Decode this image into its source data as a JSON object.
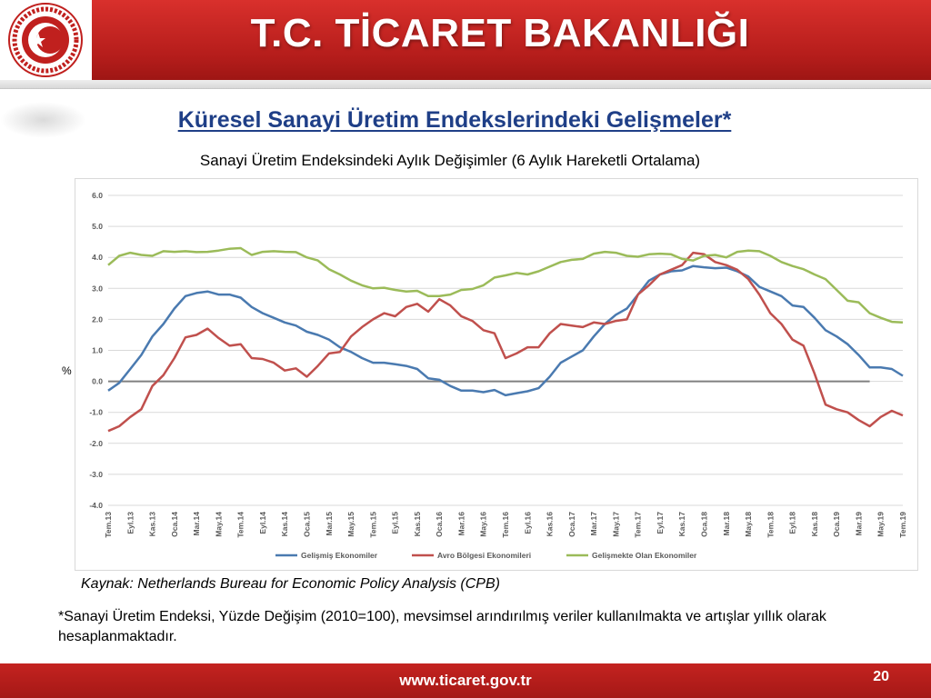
{
  "header": {
    "title": "T.C. TİCARET BAKANLIĞI"
  },
  "slide": {
    "subtitle": "Küresel Sanayi Üretim Endekslerindeki Gelişmeler*",
    "chart_title": "Sanayi Üretim Endeksindeki Aylık Değişimler (6 Aylık Hareketli Ortalama)",
    "source": "Kaynak: Netherlands Bureau for Economic Policy Analysis (CPB)",
    "footnote": "*Sanayi Üretim Endeksi, Yüzde Değişim (2010=100), mevsimsel arındırılmış veriler kullanılmakta ve artışlar yıllık olarak hesaplanmaktadır."
  },
  "footer": {
    "url": "www.ticaret.gov.tr",
    "page": "20"
  },
  "colors": {
    "header": "#c0201e",
    "subtitle": "#1f3f87"
  },
  "chart_data": {
    "type": "line",
    "title": "",
    "ylabel": "%",
    "ylim": [
      -4.0,
      6.0
    ],
    "yticks": [
      "6.0",
      "5.0",
      "4.0",
      "3.0",
      "2.0",
      "1.0",
      "0.0",
      "-1.0",
      "-2.0",
      "-3.0",
      "-4.0"
    ],
    "x": [
      "Tem.13",
      "Ağu.13",
      "Eyl.13",
      "Eki.13",
      "Kas.13",
      "Ara.13",
      "Oca.14",
      "Şub.14",
      "Mar.14",
      "Nis.14",
      "May.14",
      "Haz.14",
      "Tem.14",
      "Ağu.14",
      "Eyl.14",
      "Eki.14",
      "Kas.14",
      "Ara.14",
      "Oca.15",
      "Şub.15",
      "Mar.15",
      "Nis.15",
      "May.15",
      "Haz.15",
      "Tem.15",
      "Ağu.15",
      "Eyl.15",
      "Eki.15",
      "Kas.15",
      "Ara.15",
      "Oca.16",
      "Şub.16",
      "Mar.16",
      "Nis.16",
      "May.16",
      "Haz.16",
      "Tem.16",
      "Ağu.16",
      "Eyl.16",
      "Eki.16",
      "Kas.16",
      "Ara.16",
      "Oca.17",
      "Şub.17",
      "Mar.17",
      "Nis.17",
      "May.17",
      "Haz.17",
      "Tem.17",
      "Ağu.17",
      "Eyl.17",
      "Eki.17",
      "Kas.17",
      "Ara.17",
      "Oca.18",
      "Şub.18",
      "Mar.18",
      "Nis.18",
      "May.18",
      "Haz.18",
      "Tem.18",
      "Ağu.18",
      "Eyl.18",
      "Eki.18",
      "Kas.18",
      "Ara.18",
      "Oca.19",
      "Şub.19",
      "Mar.19",
      "Nis.19",
      "May.19",
      "Haz.19",
      "Tem.19"
    ],
    "xtick_labels": [
      "Tem.13",
      "Eyl.13",
      "Kas.13",
      "Oca.14",
      "Mar.14",
      "May.14",
      "Tem.14",
      "Eyl.14",
      "Kas.14",
      "Oca.15",
      "Mar.15",
      "May.15",
      "Tem.15",
      "Eyl.15",
      "Kas.15",
      "Oca.16",
      "Mar.16",
      "May.16",
      "Tem.16",
      "Eyl.16",
      "Kas.16",
      "Oca.17",
      "Mar.17",
      "May.17",
      "Tem.17",
      "Eyl.17",
      "Kas.17",
      "Oca.18",
      "Mar.18",
      "May.18",
      "Tem.18",
      "Eyl.18",
      "Kas.18",
      "Oca.19",
      "Mar.19",
      "May.19",
      "Tem.19"
    ],
    "legend_position": "bottom",
    "grid": true,
    "zero_line_end_index": 69,
    "series": [
      {
        "name": "Gelişmiş Ekonomiler",
        "color": "#4a7ab0",
        "values": [
          -0.3,
          -0.05,
          0.4,
          0.85,
          1.45,
          1.85,
          2.35,
          2.75,
          2.85,
          2.9,
          2.8,
          2.8,
          2.7,
          2.4,
          2.2,
          2.05,
          1.9,
          1.8,
          1.6,
          1.5,
          1.35,
          1.1,
          0.95,
          0.75,
          0.6,
          0.6,
          0.55,
          0.5,
          0.4,
          0.1,
          0.05,
          -0.15,
          -0.3,
          -0.3,
          -0.35,
          -0.28,
          -0.45,
          -0.38,
          -0.32,
          -0.22,
          0.15,
          0.6,
          0.8,
          1.0,
          1.45,
          1.85,
          2.15,
          2.35,
          2.8,
          3.25,
          3.45,
          3.55,
          3.58,
          3.72,
          3.68,
          3.65,
          3.67,
          3.55,
          3.38,
          3.05,
          2.9,
          2.75,
          2.45,
          2.4,
          2.05,
          1.65,
          1.45,
          1.2,
          0.85,
          0.45,
          0.45,
          0.4,
          0.18
        ]
      },
      {
        "name": "Avro Bölgesi Ekonomileri",
        "color": "#c0504d",
        "values": [
          -1.6,
          -1.45,
          -1.15,
          -0.9,
          -0.15,
          0.2,
          0.75,
          1.42,
          1.5,
          1.7,
          1.4,
          1.15,
          1.2,
          0.75,
          0.72,
          0.6,
          0.35,
          0.42,
          0.15,
          0.5,
          0.9,
          0.95,
          1.45,
          1.75,
          2.0,
          2.2,
          2.1,
          2.4,
          2.5,
          2.25,
          2.65,
          2.45,
          2.1,
          1.95,
          1.65,
          1.55,
          0.75,
          0.9,
          1.1,
          1.1,
          1.55,
          1.85,
          1.8,
          1.75,
          1.9,
          1.85,
          1.95,
          2.0,
          2.8,
          3.1,
          3.45,
          3.6,
          3.75,
          4.15,
          4.1,
          3.85,
          3.75,
          3.6,
          3.3,
          2.8,
          2.2,
          1.85,
          1.35,
          1.15,
          0.25,
          -0.75,
          -0.9,
          -1.0,
          -1.25,
          -1.45,
          -1.15,
          -0.95,
          -1.1
        ]
      },
      {
        "name": "Gelişmekte Olan Ekonomiler",
        "color": "#9bbb59",
        "values": [
          3.75,
          4.05,
          4.15,
          4.08,
          4.05,
          4.2,
          4.18,
          4.2,
          4.17,
          4.18,
          4.22,
          4.28,
          4.3,
          4.08,
          4.18,
          4.2,
          4.18,
          4.17,
          4.0,
          3.9,
          3.62,
          3.45,
          3.25,
          3.1,
          3.0,
          3.02,
          2.95,
          2.9,
          2.92,
          2.75,
          2.75,
          2.8,
          2.95,
          2.98,
          3.1,
          3.35,
          3.42,
          3.5,
          3.45,
          3.55,
          3.7,
          3.85,
          3.92,
          3.95,
          4.12,
          4.18,
          4.15,
          4.05,
          4.02,
          4.1,
          4.12,
          4.1,
          3.95,
          3.9,
          4.05,
          4.08,
          4.0,
          4.18,
          4.22,
          4.2,
          4.05,
          3.85,
          3.72,
          3.62,
          3.45,
          3.3,
          2.95,
          2.6,
          2.55,
          2.2,
          2.05,
          1.92,
          1.9
        ]
      }
    ]
  }
}
